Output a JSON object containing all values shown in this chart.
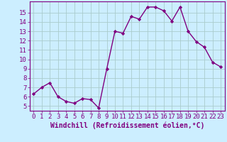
{
  "x": [
    0,
    1,
    2,
    3,
    4,
    5,
    6,
    7,
    8,
    9,
    10,
    11,
    12,
    13,
    14,
    15,
    16,
    17,
    18,
    19,
    20,
    21,
    22,
    23
  ],
  "y": [
    6.3,
    7.0,
    7.5,
    6.0,
    5.5,
    5.3,
    5.8,
    5.7,
    4.8,
    9.0,
    13.0,
    12.8,
    14.6,
    14.3,
    15.6,
    15.6,
    15.2,
    14.1,
    15.6,
    13.0,
    11.9,
    11.3,
    9.7,
    9.2
  ],
  "line_color": "#800080",
  "marker": "D",
  "marker_size": 2.2,
  "bg_color": "#cceeff",
  "grid_color": "#aacccc",
  "xlabel": "Windchill (Refroidissement éolien,°C)",
  "xlim": [
    -0.5,
    23.5
  ],
  "ylim": [
    4.5,
    16.2
  ],
  "yticks": [
    5,
    6,
    7,
    8,
    9,
    10,
    11,
    12,
    13,
    14,
    15
  ],
  "xticks": [
    0,
    1,
    2,
    3,
    4,
    5,
    6,
    7,
    8,
    9,
    10,
    11,
    12,
    13,
    14,
    15,
    16,
    17,
    18,
    19,
    20,
    21,
    22,
    23
  ],
  "tick_color": "#800080",
  "label_color": "#800080",
  "xlabel_fontsize": 7,
  "tick_fontsize": 6.5,
  "linewidth": 1.0
}
